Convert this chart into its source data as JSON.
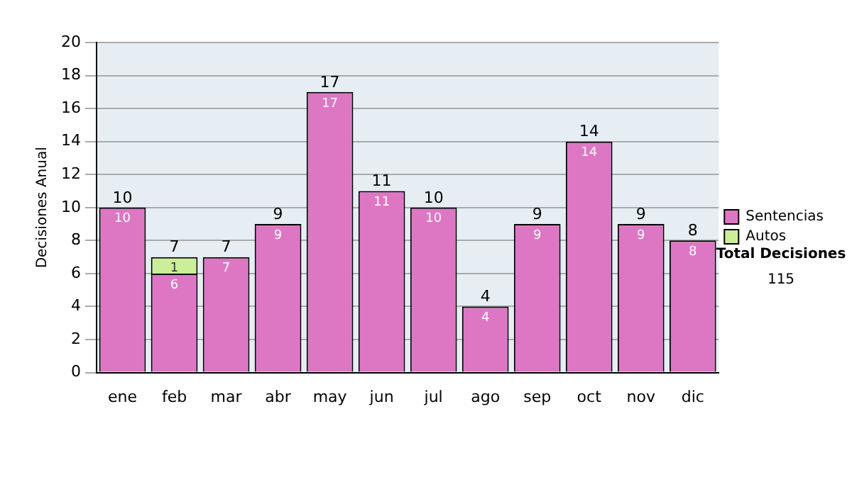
{
  "chart_data": {
    "type": "bar",
    "stacked": true,
    "ylabel": "Decisiones Anual",
    "categories": [
      "ene",
      "feb",
      "mar",
      "abr",
      "may",
      "jun",
      "jul",
      "ago",
      "sep",
      "oct",
      "nov",
      "dic"
    ],
    "series": [
      {
        "name": "Sentencias",
        "color": "#dd77c4",
        "values": [
          10,
          6,
          7,
          9,
          17,
          11,
          10,
          4,
          9,
          14,
          9,
          8
        ]
      },
      {
        "name": "Autos",
        "color": "#ccee99",
        "values": [
          null,
          1,
          null,
          null,
          null,
          null,
          null,
          null,
          null,
          null,
          null,
          null
        ]
      }
    ],
    "ylim": [
      0,
      20
    ],
    "yticks": [
      0,
      2,
      4,
      6,
      8,
      10,
      12,
      14,
      16,
      18,
      20
    ],
    "grid": "y",
    "legend": "right",
    "data_labels": true,
    "totals": [
      "10",
      "7",
      "7",
      "9",
      "17",
      "11",
      "10",
      "4",
      "9",
      "14",
      "9",
      "8"
    ],
    "annotations": [
      "Total Decisiones",
      "115"
    ]
  }
}
